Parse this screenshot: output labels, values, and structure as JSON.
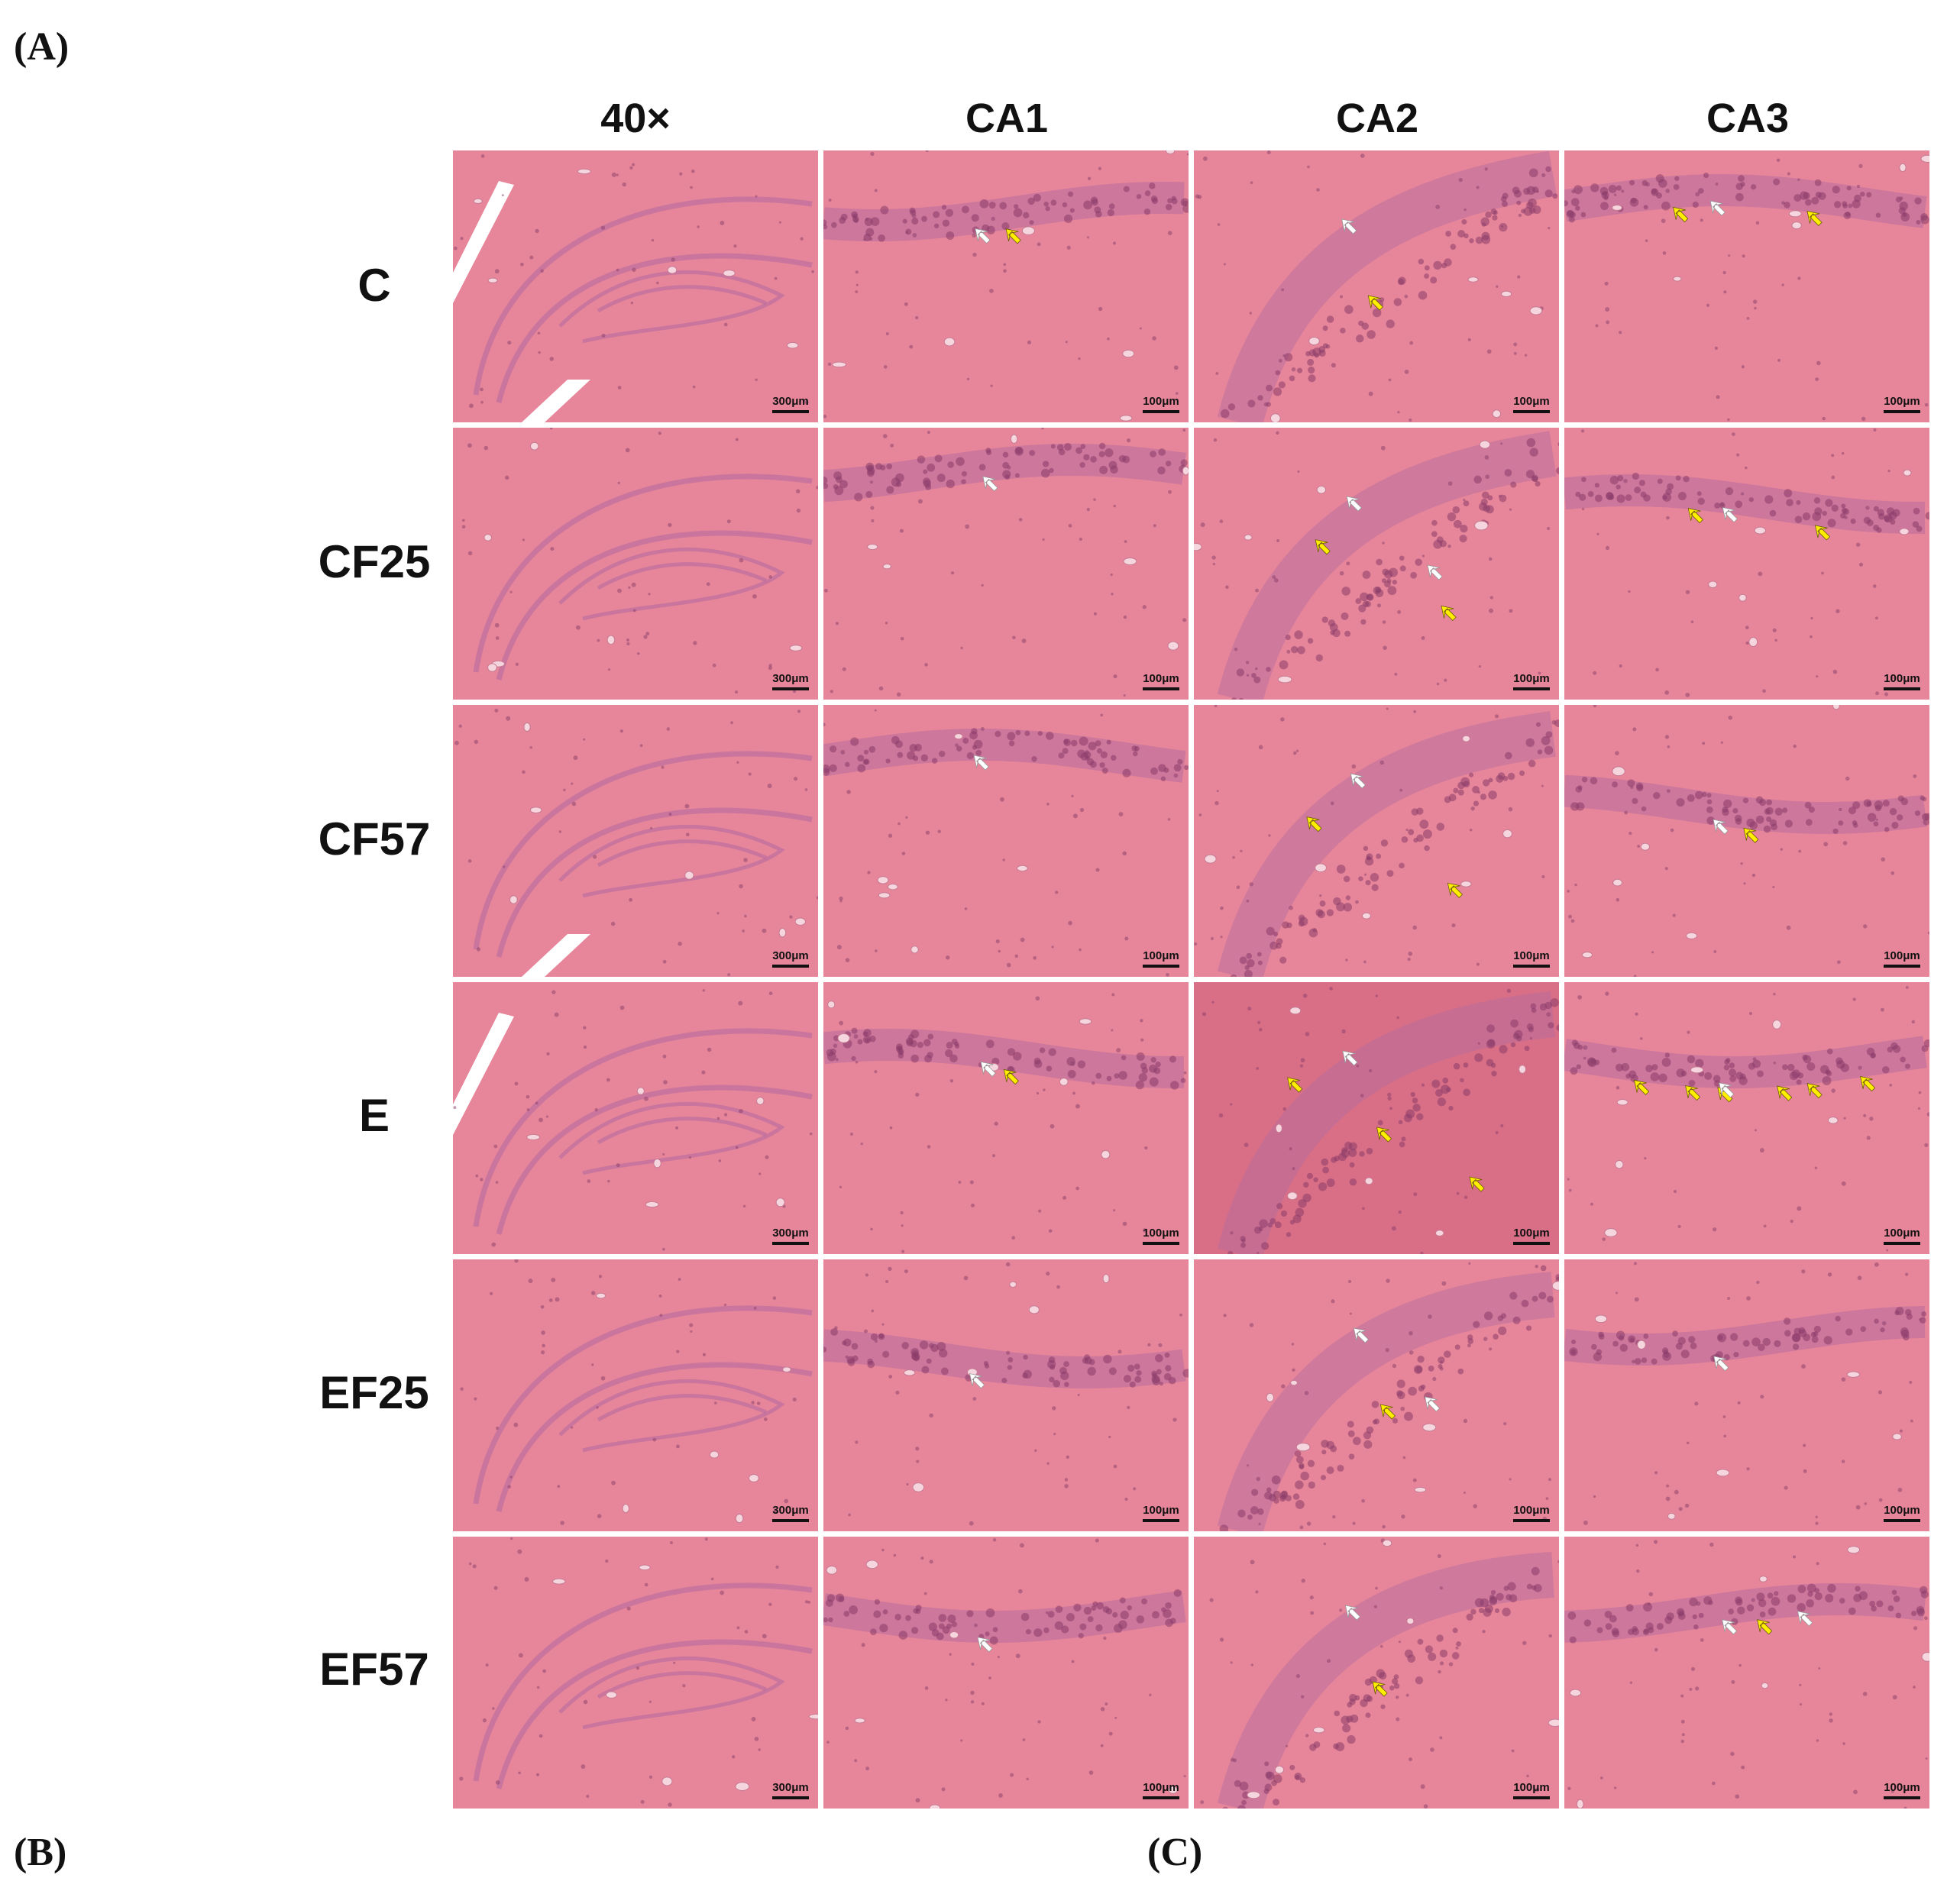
{
  "panel_labels": {
    "a": "(A)",
    "b": "(B)",
    "c": "(C)"
  },
  "columns": [
    {
      "label": "40×",
      "scale_bar": "300μm",
      "kind": "overview"
    },
    {
      "label": "CA1",
      "scale_bar": "100μm",
      "kind": "band"
    },
    {
      "label": "CA2",
      "scale_bar": "100μm",
      "kind": "curve"
    },
    {
      "label": "CA3",
      "scale_bar": "100μm",
      "kind": "band"
    }
  ],
  "rows": [
    {
      "label": "C",
      "yellow_arrows": [
        0,
        1,
        1,
        2
      ],
      "white_arrows": [
        0,
        1,
        1,
        1
      ]
    },
    {
      "label": "CF25",
      "yellow_arrows": [
        0,
        0,
        2,
        2
      ],
      "white_arrows": [
        0,
        1,
        2,
        1
      ]
    },
    {
      "label": "CF57",
      "yellow_arrows": [
        0,
        0,
        2,
        1
      ],
      "white_arrows": [
        0,
        1,
        1,
        1
      ]
    },
    {
      "label": "E",
      "yellow_arrows": [
        0,
        1,
        3,
        6
      ],
      "white_arrows": [
        0,
        1,
        1,
        1
      ]
    },
    {
      "label": "EF25",
      "yellow_arrows": [
        0,
        0,
        1,
        0
      ],
      "white_arrows": [
        0,
        1,
        2,
        1
      ]
    },
    {
      "label": "EF57",
      "yellow_arrows": [
        0,
        0,
        1,
        1
      ],
      "white_arrows": [
        0,
        1,
        1,
        2
      ]
    }
  ],
  "colors": {
    "tissue": "#e7869a",
    "tissue_dark": "#d96f86",
    "cell_band": "#b86b9e",
    "nuclei": "#8a3d6a",
    "arrow_yellow": "#ffee00",
    "arrow_white": "#ffffff"
  }
}
